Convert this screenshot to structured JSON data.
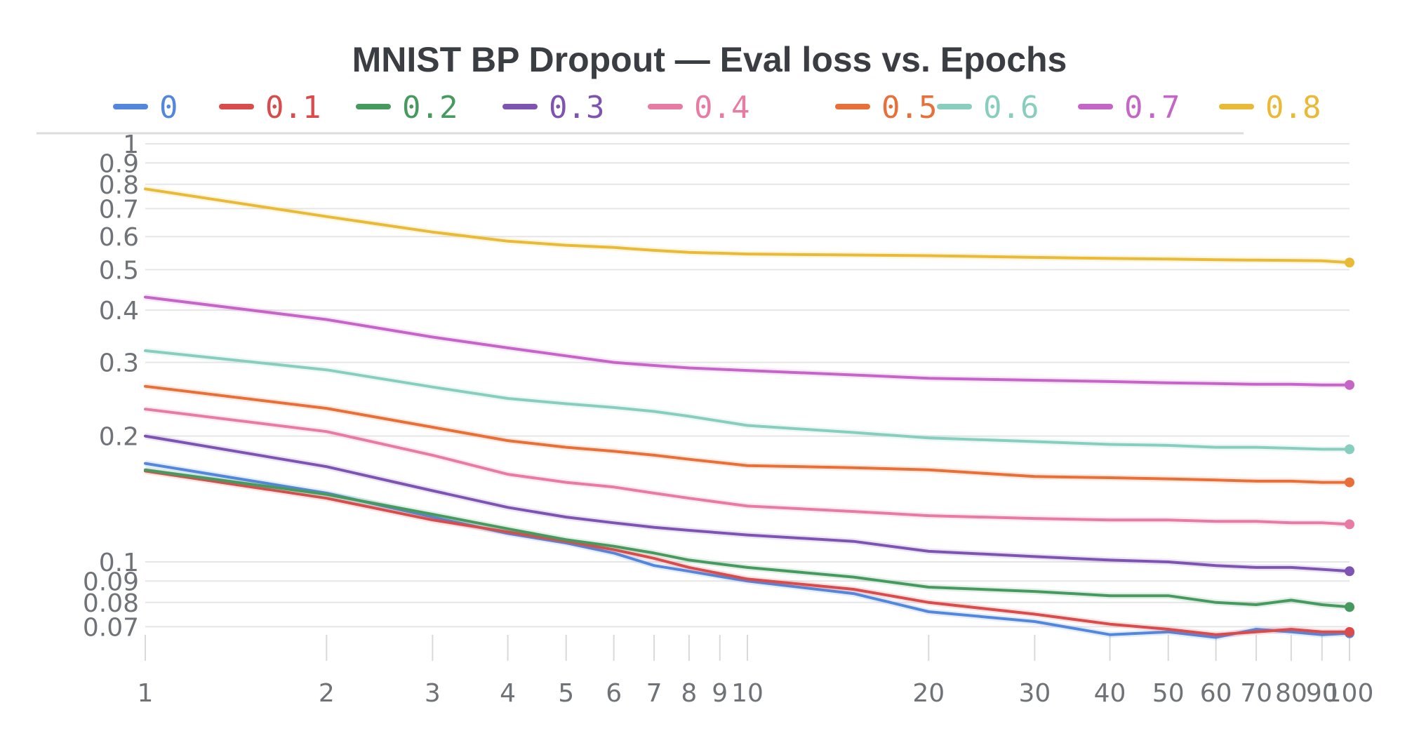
{
  "colors": {
    "title": "#3a3d42",
    "tick": "#6f7277",
    "grid": "#e6e6e6",
    "axis_tick": "#d9d9d9"
  },
  "chart_data": {
    "type": "line",
    "title": "MNIST BP Dropout — Eval loss vs. Epochs",
    "xlabel": "",
    "ylabel": "",
    "xscale": "log",
    "yscale": "log",
    "xlim": [
      1,
      100
    ],
    "ylim": [
      0.058,
      1
    ],
    "grid": true,
    "legend_placement": "top",
    "x_ticks": [
      1,
      2,
      3,
      4,
      5,
      6,
      7,
      8,
      9,
      10,
      20,
      30,
      40,
      50,
      60,
      70,
      80,
      90,
      100
    ],
    "x_tick_labels": [
      "1",
      "2",
      "3",
      "4",
      "5",
      "6",
      "7",
      "8",
      "9",
      "10",
      "20",
      "30",
      "40",
      "50",
      "60",
      "70",
      "80",
      "90",
      "100"
    ],
    "y_ticks": [
      1,
      0.9,
      0.8,
      0.7,
      0.6,
      0.5,
      0.4,
      0.3,
      0.2,
      0.1,
      0.09,
      0.08,
      0.07
    ],
    "y_tick_labels": [
      "1",
      "0.9",
      "0.8",
      "0.7",
      "0.6",
      "0.5",
      "0.4",
      "0.3",
      "0.2",
      "0.1",
      "0.09",
      "0.08",
      "0.07"
    ],
    "x": [
      1,
      2,
      3,
      4,
      5,
      6,
      7,
      8,
      10,
      15,
      20,
      30,
      40,
      50,
      60,
      70,
      80,
      90,
      100
    ],
    "series": [
      {
        "name": "0",
        "color": "#5387dd",
        "values": [
          0.172,
          0.146,
          0.128,
          0.117,
          0.111,
          0.105,
          0.098,
          0.095,
          0.09,
          0.084,
          0.076,
          0.072,
          0.067,
          0.068,
          0.066,
          0.069,
          0.068,
          0.067,
          0.0675
        ]
      },
      {
        "name": "0.1",
        "color": "#da4c4c",
        "values": [
          0.165,
          0.142,
          0.126,
          0.118,
          0.112,
          0.107,
          0.102,
          0.097,
          0.091,
          0.086,
          0.08,
          0.075,
          0.071,
          0.069,
          0.067,
          0.068,
          0.069,
          0.068,
          0.068
        ]
      },
      {
        "name": "0.2",
        "color": "#479a5f",
        "values": [
          0.166,
          0.145,
          0.13,
          0.12,
          0.113,
          0.109,
          0.105,
          0.101,
          0.097,
          0.092,
          0.087,
          0.085,
          0.083,
          0.083,
          0.08,
          0.079,
          0.081,
          0.079,
          0.078
        ]
      },
      {
        "name": "0.3",
        "color": "#7d54b2",
        "values": [
          0.2,
          0.169,
          0.148,
          0.135,
          0.128,
          0.124,
          0.121,
          0.119,
          0.116,
          0.112,
          0.106,
          0.103,
          0.101,
          0.1,
          0.098,
          0.097,
          0.097,
          0.096,
          0.095
        ]
      },
      {
        "name": "0.4",
        "color": "#e87ba4",
        "values": [
          0.232,
          0.205,
          0.18,
          0.162,
          0.155,
          0.151,
          0.146,
          0.142,
          0.136,
          0.132,
          0.129,
          0.127,
          0.126,
          0.126,
          0.125,
          0.125,
          0.124,
          0.124,
          0.123
        ]
      },
      {
        "name": "0.5",
        "color": "#e87038",
        "values": [
          0.263,
          0.233,
          0.21,
          0.195,
          0.188,
          0.184,
          0.18,
          0.176,
          0.17,
          0.168,
          0.166,
          0.16,
          0.159,
          0.158,
          0.157,
          0.156,
          0.156,
          0.155,
          0.155
        ]
      },
      {
        "name": "0.6",
        "color": "#87cebf",
        "values": [
          0.32,
          0.288,
          0.262,
          0.246,
          0.239,
          0.234,
          0.229,
          0.223,
          0.212,
          0.204,
          0.198,
          0.194,
          0.191,
          0.19,
          0.188,
          0.188,
          0.187,
          0.186,
          0.186
        ]
      },
      {
        "name": "0.7",
        "color": "#c565c7",
        "values": [
          0.43,
          0.38,
          0.345,
          0.325,
          0.311,
          0.3,
          0.295,
          0.291,
          0.287,
          0.28,
          0.275,
          0.272,
          0.27,
          0.268,
          0.267,
          0.266,
          0.266,
          0.265,
          0.265
        ]
      },
      {
        "name": "0.8",
        "color": "#e8ba36",
        "values": [
          0.78,
          0.67,
          0.615,
          0.585,
          0.572,
          0.565,
          0.556,
          0.55,
          0.545,
          0.542,
          0.54,
          0.535,
          0.532,
          0.53,
          0.528,
          0.527,
          0.526,
          0.525,
          0.52
        ]
      }
    ]
  }
}
